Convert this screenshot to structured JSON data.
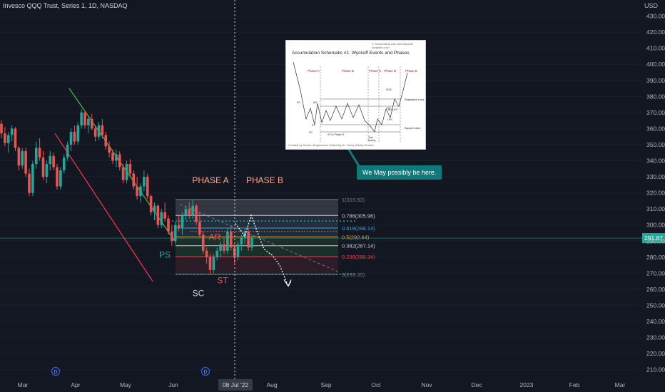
{
  "header": {
    "symbol_title": "Invesco QQQ Trust, Series 1, 1D, NASDAQ",
    "currency": "USD"
  },
  "chart_data": {
    "type": "candlestick",
    "title": "Invesco QQQ Trust, Series 1, 1D, NASDAQ",
    "ylim": [
      205,
      440
    ],
    "y_ticks": [
      210,
      220,
      230,
      240,
      250,
      260,
      270,
      280,
      290,
      300,
      310,
      320,
      330,
      340,
      350,
      360,
      370,
      380,
      390,
      400,
      410,
      420,
      430
    ],
    "x_tick_labels": [
      "Mar",
      "Apr",
      "May",
      "Jun",
      "Aug",
      "Sep",
      "Oct",
      "Nov",
      "Dec",
      "2023",
      "Feb",
      "Mar"
    ],
    "crosshair_date": "08 Jul '22",
    "last_price": "291.87",
    "dividend_markers": [
      "D",
      "D"
    ],
    "phases": [
      "PHASE A",
      "PHASE B"
    ],
    "event_labels": [
      "PS",
      "SC",
      "AR",
      "ST"
    ],
    "fib_levels": [
      {
        "ratio": 1,
        "price": 315.93,
        "label": "1(315.93)",
        "color": "#787b86"
      },
      {
        "ratio": 0.786,
        "price": 305.96,
        "label": "0.786(305.96)",
        "color": "#c8ccd6"
      },
      {
        "ratio": 0.618,
        "price": 298.14,
        "label": "0.618(298.14)",
        "color": "#4a9ec9"
      },
      {
        "ratio": 0.5,
        "price": 292.64,
        "label": "0.5(292.64)",
        "color": "#e2a24a"
      },
      {
        "ratio": 0.382,
        "price": 287.14,
        "label": "0.382(287.14)",
        "color": "#c8ccd6"
      },
      {
        "ratio": 0.236,
        "price": 280.34,
        "label": "0.236(280.34)",
        "color": "#e0474c"
      },
      {
        "ratio": 0,
        "price": 269.35,
        "label": "0(269.35)",
        "color": "#787b86"
      }
    ],
    "annotation": "We May possibly be here.",
    "inset": {
      "title": "Accumulation Schematic #1: Wyckoff Events and Phases",
      "top_credit": "© StockCharts.com and Wyckoff Analytics.com",
      "credit": "Created by Roman Bogomazov. Edited by Dr. Henry (Hank) Pruden",
      "phases": [
        "Phase A",
        "Phase B",
        "Phase C",
        "Phase D",
        "Phase E"
      ],
      "labels": [
        "PS",
        "AR",
        "SC",
        "ST",
        "ST in Phase B",
        "Test",
        "Spring",
        "LPS",
        "BU/LPS",
        "SOS",
        "LPS",
        "Resistance Lines",
        "Support Lines"
      ]
    },
    "series": [
      {
        "name": "QQQ",
        "ohlc": [
          [
            363,
            365,
            354,
            357
          ],
          [
            357,
            361,
            349,
            351
          ],
          [
            351,
            358,
            345,
            356
          ],
          [
            356,
            362,
            352,
            360
          ],
          [
            360,
            361,
            346,
            348
          ],
          [
            348,
            349,
            334,
            337
          ],
          [
            337,
            348,
            335,
            346
          ],
          [
            346,
            348,
            330,
            332
          ],
          [
            332,
            335,
            318,
            320
          ],
          [
            320,
            340,
            318,
            338
          ],
          [
            338,
            352,
            335,
            348
          ],
          [
            348,
            354,
            340,
            342
          ],
          [
            342,
            346,
            328,
            330
          ],
          [
            330,
            340,
            326,
            338
          ],
          [
            338,
            346,
            334,
            343
          ],
          [
            343,
            345,
            334,
            336
          ],
          [
            336,
            338,
            322,
            324
          ],
          [
            324,
            336,
            322,
            334
          ],
          [
            334,
            344,
            332,
            342
          ],
          [
            342,
            352,
            340,
            350
          ],
          [
            350,
            360,
            346,
            358
          ],
          [
            358,
            362,
            350,
            352
          ],
          [
            352,
            364,
            350,
            362
          ],
          [
            362,
            372,
            360,
            370
          ],
          [
            370,
            371,
            360,
            362
          ],
          [
            362,
            368,
            357,
            366
          ],
          [
            366,
            369,
            359,
            360
          ],
          [
            360,
            362,
            352,
            355
          ],
          [
            355,
            364,
            353,
            362
          ],
          [
            362,
            366,
            354,
            356
          ],
          [
            356,
            358,
            347,
            349
          ],
          [
            349,
            352,
            342,
            345
          ],
          [
            345,
            347,
            338,
            340
          ],
          [
            340,
            347,
            336,
            344
          ],
          [
            344,
            346,
            334,
            336
          ],
          [
            336,
            338,
            326,
            328
          ],
          [
            328,
            340,
            326,
            338
          ],
          [
            338,
            341,
            330,
            332
          ],
          [
            332,
            334,
            322,
            324
          ],
          [
            324,
            330,
            316,
            318
          ],
          [
            318,
            326,
            314,
            324
          ],
          [
            324,
            334,
            321,
            330
          ],
          [
            330,
            332,
            316,
            318
          ],
          [
            318,
            319,
            306,
            308
          ],
          [
            308,
            314,
            303,
            312
          ],
          [
            312,
            313,
            298,
            300
          ],
          [
            300,
            310,
            298,
            308
          ],
          [
            308,
            314,
            302,
            304
          ],
          [
            304,
            306,
            294,
            296
          ],
          [
            296,
            300,
            287,
            290
          ],
          [
            290,
            302,
            288,
            300
          ],
          [
            300,
            306,
            296,
            298
          ],
          [
            298,
            308,
            294,
            306
          ],
          [
            306,
            312,
            303,
            310
          ],
          [
            310,
            314,
            304,
            306
          ],
          [
            306,
            316,
            304,
            312
          ],
          [
            312,
            313,
            300,
            302
          ],
          [
            302,
            308,
            292,
            294
          ],
          [
            294,
            296,
            282,
            284
          ],
          [
            284,
            286,
            276,
            280
          ],
          [
            280,
            282,
            269,
            272
          ],
          [
            272,
            282,
            270,
            280
          ],
          [
            280,
            286,
            278,
            284
          ],
          [
            284,
            290,
            280,
            288
          ],
          [
            288,
            292,
            282,
            284
          ],
          [
            284,
            298,
            282,
            296
          ],
          [
            296,
            300,
            284,
            286
          ],
          [
            286,
            288,
            276,
            280
          ],
          [
            280,
            290,
            278,
            288
          ],
          [
            288,
            294,
            284,
            292
          ],
          [
            292,
            298,
            288,
            296
          ],
          [
            296,
            298,
            284,
            286
          ],
          [
            286,
            294,
            284,
            292
          ]
        ]
      }
    ]
  }
}
